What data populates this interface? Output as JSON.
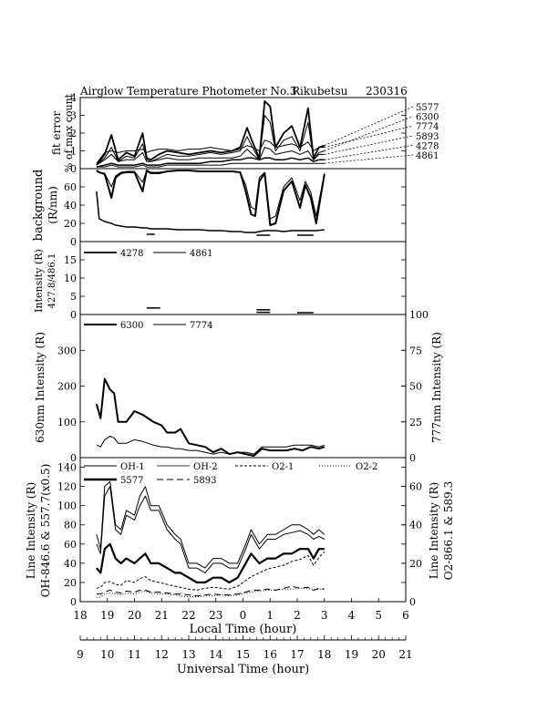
{
  "title": "Airglow Temperature Photometer No.3",
  "station": "Rikubetsu",
  "date_code": "230316",
  "chart_data": [
    {
      "type": "line",
      "panel": "fit_error",
      "ylabel": [
        "fit error",
        "% of max count"
      ],
      "ylim": [
        0,
        4
      ],
      "yticks": [
        0,
        1,
        2,
        3,
        4
      ],
      "legend_labels": [
        "5577",
        "6300",
        "7774",
        "5893",
        "4278",
        "4861"
      ],
      "x": [
        18.6,
        18.9,
        19.15,
        19.4,
        19.7,
        20.0,
        20.3,
        20.45,
        20.6,
        20.9,
        21.2,
        21.6,
        22.0,
        22.4,
        22.8,
        23.2,
        23.6,
        23.9,
        24.15,
        24.35,
        24.6,
        24.8,
        25.0,
        25.2,
        25.5,
        25.8,
        26.1,
        26.4,
        26.6,
        26.8,
        27.0
      ],
      "series": [
        {
          "values": [
            0.2,
            0.8,
            1.9,
            0.5,
            0.9,
            0.7,
            2.0,
            0.6,
            0.5,
            0.8,
            1.0,
            0.9,
            0.8,
            0.9,
            1.0,
            0.9,
            1.0,
            1.2,
            2.3,
            1.5,
            0.6,
            3.8,
            3.5,
            1.2,
            2.0,
            2.4,
            1.2,
            3.4,
            0.6,
            1.2,
            1.3
          ],
          "width": 1.8
        },
        {
          "values": [
            0.2,
            0.6,
            1.2,
            0.4,
            0.7,
            0.6,
            1.4,
            0.5,
            0.4,
            0.6,
            0.8,
            0.7,
            0.7,
            0.8,
            0.9,
            0.8,
            0.9,
            1.0,
            1.8,
            1.2,
            0.5,
            3.0,
            2.6,
            1.0,
            1.6,
            1.8,
            1.0,
            2.6,
            0.5,
            0.9,
            1.0
          ],
          "width": 1
        },
        {
          "values": [
            0.3,
            0.9,
            1.0,
            0.9,
            1.0,
            1.0,
            1.1,
            0.9,
            1.0,
            1.1,
            1.1,
            1.0,
            1.1,
            1.1,
            1.2,
            1.1,
            1.0,
            1.1,
            1.3,
            1.2,
            1.0,
            1.6,
            1.5,
            1.2,
            1.3,
            1.4,
            1.2,
            1.5,
            1.0,
            1.2,
            1.2
          ],
          "width": 1
        },
        {
          "values": [
            0.2,
            0.5,
            0.8,
            0.4,
            0.5,
            0.5,
            0.9,
            0.4,
            0.4,
            0.5,
            0.6,
            0.5,
            0.5,
            0.6,
            0.6,
            0.6,
            0.6,
            0.7,
            1.1,
            0.8,
            0.5,
            1.2,
            1.1,
            0.8,
            0.9,
            1.0,
            0.8,
            1.0,
            0.5,
            0.8,
            0.8
          ],
          "width": 1
        },
        {
          "values": [
            0.1,
            0.2,
            0.3,
            0.2,
            0.2,
            0.2,
            0.3,
            0.2,
            0.2,
            0.2,
            0.3,
            0.3,
            0.3,
            0.3,
            0.4,
            0.4,
            0.5,
            0.5,
            0.6,
            0.6,
            0.5,
            0.6,
            0.6,
            0.5,
            0.5,
            0.6,
            0.5,
            0.6,
            0.4,
            0.5,
            0.5
          ],
          "width": 1.5
        },
        {
          "values": [
            0.1,
            0.1,
            0.2,
            0.1,
            0.1,
            0.1,
            0.2,
            0.1,
            0.1,
            0.1,
            0.2,
            0.2,
            0.2,
            0.2,
            0.2,
            0.2,
            0.3,
            0.3,
            0.3,
            0.3,
            0.3,
            0.3,
            0.3,
            0.3,
            0.3,
            0.3,
            0.3,
            0.3,
            0.3,
            0.3,
            0.3
          ],
          "width": 1
        }
      ]
    },
    {
      "type": "line",
      "panel": "background",
      "ylabel": [
        "background",
        "(R/nm)"
      ],
      "ylim": [
        0,
        80
      ],
      "yticks": [
        0,
        20,
        40,
        60
      ],
      "x": [
        18.6,
        18.7,
        18.9,
        19.15,
        19.3,
        19.5,
        19.7,
        20.0,
        20.3,
        20.45,
        20.6,
        20.9,
        21.2,
        21.6,
        22.0,
        22.4,
        22.8,
        23.2,
        23.6,
        23.9,
        24.1,
        24.3,
        24.45,
        24.6,
        24.8,
        25.0,
        25.2,
        25.5,
        25.8,
        26.1,
        26.3,
        26.5,
        26.7,
        27.0
      ],
      "series": [
        {
          "values": [
            55,
            25,
            22,
            20,
            18,
            17,
            16,
            16,
            15,
            15,
            14,
            14,
            14,
            13,
            13,
            13,
            12,
            12,
            11,
            11,
            10,
            10,
            10,
            11,
            12,
            12,
            12,
            11,
            12,
            12,
            12,
            12,
            12,
            13
          ],
          "width": 1.5
        },
        {
          "values": [
            78,
            76,
            74,
            48,
            70,
            75,
            76,
            76,
            55,
            78,
            75,
            75,
            77,
            78,
            78,
            77,
            77,
            77,
            77,
            76,
            55,
            30,
            28,
            66,
            75,
            18,
            20,
            56,
            66,
            37,
            62,
            48,
            20,
            74
          ],
          "width": 2
        },
        {
          "values": [
            78,
            76,
            75,
            60,
            72,
            76,
            77,
            77,
            65,
            78,
            76,
            76,
            77,
            78,
            78,
            77,
            77,
            77,
            77,
            76,
            62,
            38,
            35,
            70,
            76,
            25,
            28,
            60,
            70,
            45,
            66,
            54,
            28,
            75
          ],
          "width": 1
        }
      ],
      "segments": [
        {
          "x": [
            20.45,
            20.75
          ],
          "y": 8
        },
        {
          "x": [
            24.5,
            25.0
          ],
          "y": 7
        },
        {
          "x": [
            26.0,
            26.6
          ],
          "y": 7
        }
      ]
    },
    {
      "type": "line",
      "panel": "intensity_427_486",
      "ylabel": [
        "Intensity (R)",
        "427.8/486.1"
      ],
      "ylim": [
        0,
        20
      ],
      "yticks": [
        0,
        5,
        10,
        15
      ],
      "ytick_labels": [
        "0",
        "5",
        "10",
        "15"
      ],
      "legend_labels": [
        "4278",
        "4861"
      ],
      "segments": [
        {
          "x": [
            20.45,
            20.95
          ],
          "y": 1.8
        },
        {
          "x": [
            24.5,
            25.0
          ],
          "y": 1.3
        },
        {
          "x": [
            24.5,
            25.0
          ],
          "y": 0.6
        },
        {
          "x": [
            26.0,
            26.6
          ],
          "y": 0.5
        }
      ]
    },
    {
      "type": "line",
      "panel": "intensity_630_777",
      "ylabel_left": "630nm Intensity (R)",
      "ylabel_right": "777nm Intensity (R)",
      "ylim": [
        0,
        400
      ],
      "yticks": [
        0,
        100,
        200,
        300
      ],
      "ylim_right": [
        0,
        100
      ],
      "yticks_right": [
        0,
        25,
        50,
        75,
        100
      ],
      "legend_labels": [
        "6300",
        "7774"
      ],
      "x": [
        18.6,
        18.75,
        18.9,
        19.1,
        19.25,
        19.4,
        19.7,
        20.0,
        20.3,
        20.5,
        20.7,
        21.0,
        21.2,
        21.5,
        21.7,
        22.0,
        22.3,
        22.6,
        22.9,
        23.2,
        23.5,
        23.8,
        24.1,
        24.4,
        24.7,
        25.0,
        25.3,
        25.6,
        25.9,
        26.2,
        26.5,
        26.8,
        27.0
      ],
      "series": [
        {
          "values": [
            150,
            110,
            220,
            190,
            180,
            100,
            100,
            130,
            120,
            110,
            100,
            90,
            70,
            70,
            80,
            40,
            35,
            30,
            15,
            25,
            10,
            15,
            10,
            5,
            25,
            20,
            20,
            20,
            25,
            20,
            30,
            25,
            30
          ],
          "width": 2
        },
        {
          "values": [
            35,
            30,
            50,
            60,
            55,
            40,
            40,
            50,
            45,
            40,
            35,
            30,
            30,
            25,
            25,
            20,
            20,
            15,
            10,
            15,
            10,
            15,
            15,
            10,
            30,
            30,
            30,
            30,
            35,
            35,
            35,
            30,
            35
          ],
          "width": 1
        }
      ]
    },
    {
      "type": "line",
      "panel": "line_intensity",
      "ylabel_left": [
        "Line Intensity (R)",
        "OH-846.6 & 557.7(x0.5)"
      ],
      "ylabel_right": [
        "Line Intensity (R)",
        "O2-866.1 & 589.3"
      ],
      "ylim": [
        0,
        150
      ],
      "yticks": [
        0,
        20,
        40,
        60,
        80,
        100,
        120,
        140
      ],
      "ylim_right": [
        0,
        75
      ],
      "yticks_right": [
        0,
        20,
        40,
        60
      ],
      "legend_labels": [
        "OH-1",
        "OH-2",
        "O2-1",
        "O2-2",
        "5577",
        "5893"
      ],
      "x": [
        18.6,
        18.75,
        18.9,
        19.1,
        19.3,
        19.5,
        19.7,
        20.0,
        20.2,
        20.4,
        20.6,
        20.9,
        21.2,
        21.5,
        21.7,
        22.0,
        22.3,
        22.6,
        22.9,
        23.2,
        23.5,
        23.8,
        24.1,
        24.3,
        24.6,
        24.9,
        25.2,
        25.5,
        25.8,
        26.1,
        26.4,
        26.6,
        26.8,
        27.0
      ],
      "series": [
        {
          "values": [
            70,
            55,
            120,
            125,
            80,
            75,
            95,
            90,
            110,
            120,
            100,
            100,
            80,
            70,
            65,
            40,
            40,
            35,
            45,
            45,
            40,
            40,
            60,
            75,
            60,
            70,
            70,
            75,
            80,
            80,
            75,
            70,
            75,
            70
          ],
          "width": 1
        },
        {
          "values": [
            60,
            50,
            110,
            120,
            75,
            70,
            90,
            85,
            100,
            110,
            95,
            95,
            75,
            65,
            60,
            35,
            35,
            30,
            40,
            40,
            35,
            35,
            55,
            70,
            55,
            65,
            65,
            70,
            72,
            74,
            70,
            65,
            68,
            65
          ],
          "width": 1
        },
        {
          "values": [
            14,
            15,
            20,
            21,
            18,
            17,
            22,
            20,
            24,
            26,
            22,
            20,
            18,
            16,
            15,
            13,
            12,
            14,
            15,
            14,
            13,
            16,
            22,
            26,
            30,
            34,
            36,
            38,
            42,
            44,
            48,
            38,
            46,
            52
          ],
          "width": 1,
          "dash": "3,2"
        },
        {
          "values": [
            4,
            5,
            8,
            9,
            8,
            7,
            9,
            8,
            10,
            11,
            9,
            8,
            8,
            7,
            6,
            5,
            5,
            6,
            6,
            7,
            6,
            7,
            9,
            10,
            11,
            12,
            12,
            13,
            13,
            14,
            14,
            12,
            13,
            13
          ],
          "width": 1,
          "dash": "1,2"
        },
        {
          "values": [
            35,
            30,
            55,
            60,
            45,
            40,
            45,
            40,
            45,
            50,
            40,
            40,
            35,
            30,
            30,
            25,
            20,
            20,
            25,
            25,
            20,
            25,
            40,
            50,
            40,
            45,
            45,
            50,
            50,
            55,
            55,
            45,
            55,
            55
          ],
          "width": 2.2
        },
        {
          "values": [
            8,
            8,
            10,
            12,
            10,
            9,
            11,
            10,
            12,
            12,
            10,
            10,
            9,
            8,
            8,
            7,
            6,
            7,
            8,
            7,
            7,
            8,
            10,
            12,
            12,
            13,
            12,
            14,
            16,
            14,
            15,
            12,
            14,
            13
          ],
          "width": 1,
          "dash": "7,4"
        }
      ]
    }
  ],
  "x_axes": {
    "local": {
      "label": "Local Time (hour)",
      "ticks": [
        "18",
        "19",
        "20",
        "21",
        "22",
        "23",
        "0",
        "1",
        "2",
        "3",
        "4",
        "5",
        "6"
      ]
    },
    "universal": {
      "label": "Universal Time (hour)",
      "ticks": [
        "9",
        "10",
        "11",
        "12",
        "13",
        "14",
        "15",
        "16",
        "17",
        "18",
        "19",
        "20",
        "21"
      ]
    }
  }
}
